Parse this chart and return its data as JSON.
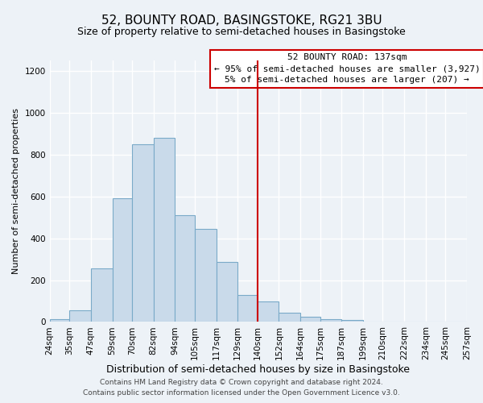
{
  "title": "52, BOUNTY ROAD, BASINGSTOKE, RG21 3BU",
  "subtitle": "Size of property relative to semi-detached houses in Basingstoke",
  "xlabel": "Distribution of semi-detached houses by size in Basingstoke",
  "ylabel": "Number of semi-detached properties",
  "bins": [
    24,
    35,
    47,
    59,
    70,
    82,
    94,
    105,
    117,
    129,
    140,
    152,
    164,
    175,
    187,
    199,
    210,
    222,
    234,
    245,
    257
  ],
  "counts": [
    15,
    55,
    255,
    590,
    850,
    880,
    510,
    445,
    285,
    130,
    100,
    45,
    25,
    15,
    10,
    3,
    2,
    1,
    1,
    1
  ],
  "bar_color": "#c9daea",
  "bar_edge_color": "#7aaac8",
  "vline_x": 140,
  "vline_color": "#cc0000",
  "ylim": [
    0,
    1250
  ],
  "yticks": [
    0,
    200,
    400,
    600,
    800,
    1000,
    1200
  ],
  "annotation_title": "52 BOUNTY ROAD: 137sqm",
  "annotation_line1": "← 95% of semi-detached houses are smaller (3,927)",
  "annotation_line2": "5% of semi-detached houses are larger (207) →",
  "annotation_box_color": "#ffffff",
  "annotation_box_edge": "#cc0000",
  "footer1": "Contains HM Land Registry data © Crown copyright and database right 2024.",
  "footer2": "Contains public sector information licensed under the Open Government Licence v3.0.",
  "background_color": "#edf2f7",
  "grid_color": "#ffffff",
  "title_fontsize": 11,
  "subtitle_fontsize": 9,
  "xlabel_fontsize": 9,
  "ylabel_fontsize": 8,
  "tick_fontsize": 7.5,
  "annotation_fontsize": 8,
  "footer_fontsize": 6.5
}
